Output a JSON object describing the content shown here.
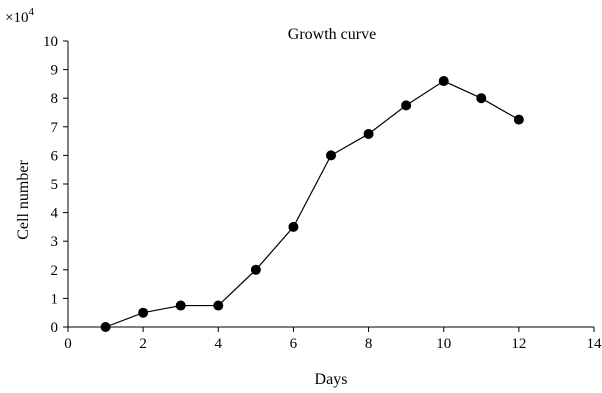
{
  "chart_data": {
    "type": "line",
    "title": "Growth curve",
    "xlabel": "Days",
    "ylabel": "Cell number",
    "y_multiplier": {
      "base": "×10",
      "exponent": "4"
    },
    "xlim": [
      0,
      14
    ],
    "ylim": [
      0,
      10
    ],
    "x_ticks": [
      0,
      2,
      4,
      6,
      8,
      10,
      12,
      14
    ],
    "y_ticks": [
      0,
      1,
      2,
      3,
      4,
      5,
      6,
      7,
      8,
      9,
      10
    ],
    "grid": false,
    "series": [
      {
        "x": [
          1,
          2,
          3,
          4,
          5,
          6,
          7,
          8,
          9,
          10,
          11,
          12
        ],
        "y": [
          0,
          0.5,
          0.75,
          0.75,
          2,
          3.5,
          6,
          6.75,
          7.75,
          8.6,
          8,
          7.25
        ],
        "color": "#000000",
        "marker": "filled-circle"
      }
    ]
  }
}
